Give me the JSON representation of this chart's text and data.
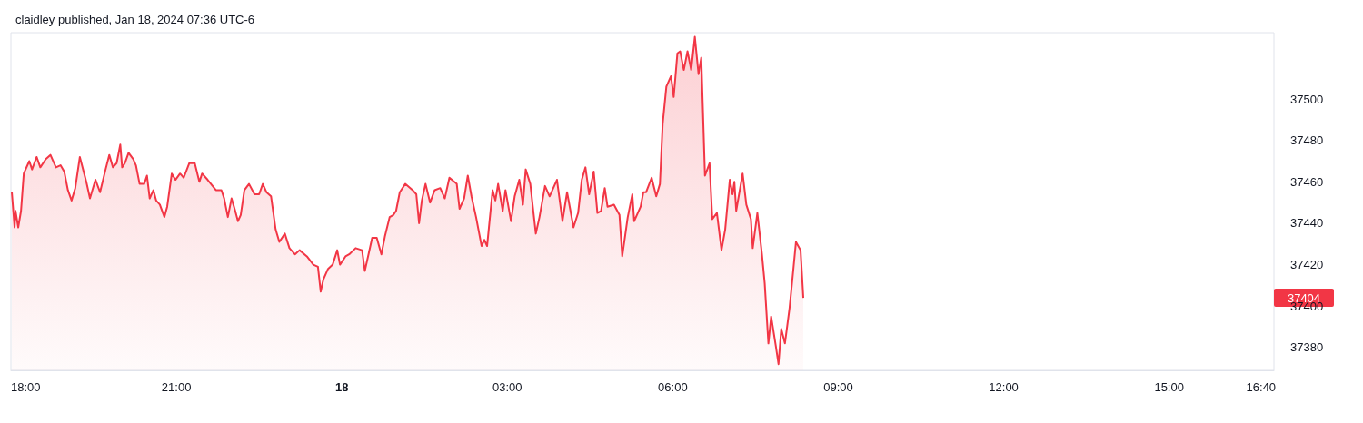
{
  "chart_data": {
    "type": "area",
    "title": "claidley published, Jan 18, 2024 07:36 UTC-6",
    "x": [
      "2024-01-17T18:01",
      "2024-01-17T18:04",
      "2024-01-17T18:05",
      "2024-01-17T18:08",
      "2024-01-17T18:11",
      "2024-01-17T18:14",
      "2024-01-17T18:20",
      "2024-01-17T18:23",
      "2024-01-17T18:28",
      "2024-01-17T18:32",
      "2024-01-17T18:38",
      "2024-01-17T18:43",
      "2024-01-17T18:49",
      "2024-01-17T18:54",
      "2024-01-17T18:58",
      "2024-01-17T19:02",
      "2024-01-17T19:06",
      "2024-01-17T19:10",
      "2024-01-17T19:15",
      "2024-01-17T19:22",
      "2024-01-17T19:26",
      "2024-01-17T19:32",
      "2024-01-17T19:37",
      "2024-01-17T19:43",
      "2024-01-17T19:47",
      "2024-01-17T19:51",
      "2024-01-17T19:55",
      "2024-01-17T19:59",
      "2024-01-17T20:01",
      "2024-01-17T20:04",
      "2024-01-17T20:08",
      "2024-01-17T20:13",
      "2024-01-17T20:16",
      "2024-01-17T20:20",
      "2024-01-17T20:25",
      "2024-01-17T20:28",
      "2024-01-17T20:31",
      "2024-01-17T20:35",
      "2024-01-17T20:38",
      "2024-01-17T20:42",
      "2024-01-17T20:47",
      "2024-01-17T20:50",
      "2024-01-17T20:55",
      "2024-01-17T20:59",
      "2024-01-17T21:04",
      "2024-01-17T21:08",
      "2024-01-17T21:14",
      "2024-01-17T21:20",
      "2024-01-17T21:25",
      "2024-01-17T21:28",
      "2024-01-17T21:34",
      "2024-01-17T21:43",
      "2024-01-17T21:49",
      "2024-01-17T21:52",
      "2024-01-17T21:56",
      "2024-01-17T22:00",
      "2024-01-17T22:04",
      "2024-01-17T22:07",
      "2024-01-17T22:10",
      "2024-01-17T22:14",
      "2024-01-17T22:19",
      "2024-01-17T22:25",
      "2024-01-17T22:30",
      "2024-01-17T22:34",
      "2024-01-17T22:38",
      "2024-01-17T22:43",
      "2024-01-17T22:48",
      "2024-01-17T22:52",
      "2024-01-17T22:58",
      "2024-01-17T23:03",
      "2024-01-17T23:09",
      "2024-01-17T23:14",
      "2024-01-17T23:22",
      "2024-01-17T23:29",
      "2024-01-17T23:34",
      "2024-01-17T23:37",
      "2024-01-17T23:40",
      "2024-01-17T23:45",
      "2024-01-17T23:50",
      "2024-01-17T23:55",
      "2024-01-17T23:58",
      "2024-01-18T00:04",
      "2024-01-18T00:08",
      "2024-01-18T00:15",
      "2024-01-18T00:22",
      "2024-01-18T00:25",
      "2024-01-18T00:33",
      "2024-01-18T00:38",
      "2024-01-18T00:43",
      "2024-01-18T00:47",
      "2024-01-18T00:52",
      "2024-01-18T00:56",
      "2024-01-18T00:59",
      "2024-01-18T01:03",
      "2024-01-18T01:09",
      "2024-01-18T01:17",
      "2024-01-18T01:21",
      "2024-01-18T01:24",
      "2024-01-18T01:27",
      "2024-01-18T01:31",
      "2024-01-18T01:36",
      "2024-01-18T01:41",
      "2024-01-18T01:47",
      "2024-01-18T01:52",
      "2024-01-18T01:57",
      "2024-01-18T02:05",
      "2024-01-18T02:08",
      "2024-01-18T02:13",
      "2024-01-18T02:17",
      "2024-01-18T02:21",
      "2024-01-18T02:26",
      "2024-01-18T02:32",
      "2024-01-18T02:35",
      "2024-01-18T02:38",
      "2024-01-18T02:44",
      "2024-01-18T02:47",
      "2024-01-18T02:50",
      "2024-01-18T02:55",
      "2024-01-18T02:58",
      "2024-01-18T03:04",
      "2024-01-18T03:08",
      "2024-01-18T03:13",
      "2024-01-18T03:17",
      "2024-01-18T03:20",
      "2024-01-18T03:25",
      "2024-01-18T03:31",
      "2024-01-18T03:35",
      "2024-01-18T03:41",
      "2024-01-18T03:46",
      "2024-01-18T03:54",
      "2024-01-18T04:00",
      "2024-01-18T04:05",
      "2024-01-18T04:12",
      "2024-01-18T04:17",
      "2024-01-18T04:21",
      "2024-01-18T04:25",
      "2024-01-18T04:29",
      "2024-01-18T04:34",
      "2024-01-18T04:38",
      "2024-01-18T04:42",
      "2024-01-18T04:46",
      "2024-01-18T04:49",
      "2024-01-18T04:56",
      "2024-01-18T05:02",
      "2024-01-18T05:05",
      "2024-01-18T05:11",
      "2024-01-18T05:16",
      "2024-01-18T05:18",
      "2024-01-18T05:25",
      "2024-01-18T05:28",
      "2024-01-18T05:31",
      "2024-01-18T05:37",
      "2024-01-18T05:42",
      "2024-01-18T05:46",
      "2024-01-18T05:49",
      "2024-01-18T05:53",
      "2024-01-18T05:58",
      "2024-01-18T06:01",
      "2024-01-18T06:05",
      "2024-01-18T06:08",
      "2024-01-18T06:12",
      "2024-01-18T06:16",
      "2024-01-18T06:20",
      "2024-01-18T06:24",
      "2024-01-18T06:28",
      "2024-01-18T06:31",
      "2024-01-18T06:35",
      "2024-01-18T06:40",
      "2024-01-18T06:43",
      "2024-01-18T06:48",
      "2024-01-18T06:53",
      "2024-01-18T06:57",
      "2024-01-18T07:02",
      "2024-01-18T07:05",
      "2024-01-18T07:07",
      "2024-01-18T07:09",
      "2024-01-18T07:16",
      "2024-01-18T07:20",
      "2024-01-18T07:25",
      "2024-01-18T07:27",
      "2024-01-18T07:32",
      "2024-01-18T07:37",
      "2024-01-18T07:40",
      "2024-01-18T07:44",
      "2024-01-18T07:47",
      "2024-01-18T07:52",
      "2024-01-18T07:55",
      "2024-01-18T07:58",
      "2024-01-18T08:02",
      "2024-01-18T08:07",
      "2024-01-18T08:11",
      "2024-01-18T08:14",
      "2024-01-18T08:19",
      "2024-01-18T08:22"
    ],
    "series": [
      {
        "color": "#f23645",
        "values": [
          37455,
          37438,
          37446,
          37438,
          37446,
          37464,
          37470,
          37466,
          37472,
          37467,
          37471,
          37473,
          37467,
          37468,
          37465,
          37456,
          37451,
          37457,
          37472,
          37460,
          37452,
          37461,
          37455,
          37466,
          37473,
          37467,
          37469,
          37478,
          37467,
          37469,
          37474,
          37471,
          37468,
          37459,
          37459,
          37463,
          37452,
          37456,
          37451,
          37449,
          37443,
          37448,
          37464,
          37461,
          37464,
          37462,
          37469,
          37469,
          37460,
          37464,
          37461,
          37456,
          37456,
          37452,
          37443,
          37452,
          37446,
          37441,
          37444,
          37456,
          37459,
          37454,
          37454,
          37459,
          37455,
          37453,
          37437,
          37431,
          37435,
          37428,
          37425,
          37427,
          37424,
          37420,
          37419,
          37407,
          37413,
          37418,
          37420,
          37427,
          37420,
          37424,
          37425,
          37428,
          37427,
          37417,
          37433,
          37433,
          37425,
          37434,
          37443,
          37444,
          37446,
          37455,
          37459,
          37456,
          37454,
          37440,
          37451,
          37459,
          37450,
          37456,
          37457,
          37452,
          37462,
          37459,
          37447,
          37452,
          37463,
          37453,
          37443,
          37429,
          37432,
          37429,
          37456,
          37451,
          37459,
          37446,
          37456,
          37441,
          37453,
          37461,
          37449,
          37466,
          37459,
          37435,
          37443,
          37458,
          37453,
          37461,
          37441,
          37455,
          37438,
          37445,
          37461,
          37467,
          37454,
          37465,
          37445,
          37446,
          37457,
          37448,
          37449,
          37444,
          37424,
          37443,
          37454,
          37441,
          37448,
          37455,
          37455,
          37462,
          37453,
          37459,
          37488,
          37506,
          37511,
          37501,
          37522,
          37523,
          37514,
          37523,
          37514,
          37530,
          37512,
          37520,
          37463,
          37469,
          37442,
          37445,
          37427,
          37437,
          37461,
          37454,
          37460,
          37446,
          37464,
          37449,
          37442,
          37428,
          37445,
          37425,
          37411,
          37382,
          37395,
          37381,
          37372,
          37389,
          37382,
          37399,
          37417,
          37431,
          37427,
          37404
        ]
      }
    ],
    "xlim": [
      "2024-01-17T18:00",
      "2024-01-18T16:54"
    ],
    "xticks": [
      {
        "value": "2024-01-17T18:00",
        "label": "18:00"
      },
      {
        "value": "2024-01-17T21:00",
        "label": "21:00"
      },
      {
        "value": "2024-01-18T00:00",
        "label": "18"
      },
      {
        "value": "2024-01-18T03:00",
        "label": "03:00"
      },
      {
        "value": "2024-01-18T06:00",
        "label": "06:00"
      },
      {
        "value": "2024-01-18T09:00",
        "label": "09:00"
      },
      {
        "value": "2024-01-18T12:00",
        "label": "12:00"
      },
      {
        "value": "2024-01-18T15:00",
        "label": "15:00"
      },
      {
        "value": "2024-01-18T16:40",
        "label": "16:40"
      }
    ],
    "ylim": [
      37369,
      37532
    ],
    "yticks": [
      37380,
      37400,
      37420,
      37440,
      37460,
      37480,
      37500
    ],
    "annotations": [
      "37404"
    ]
  }
}
